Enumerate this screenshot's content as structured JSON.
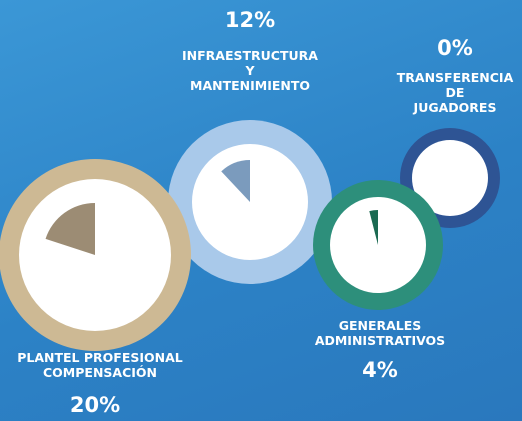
{
  "chart_data": {
    "type": "pie",
    "categories": [
      "PLANTEL PROFESIONAL\nCOMPENSACIÓN",
      "INFRAESTRUCTURA\nY\nMANTENIMIENTO",
      "TRANSFERENCIA\nDE\nJUGADORES",
      "GENERALES\nADMINISTRATIVOS"
    ],
    "values": [
      20,
      12,
      0,
      4
    ],
    "value_labels": [
      "20%",
      "12%",
      "0%",
      "4%"
    ],
    "colors": [
      "#cdb994",
      "#a9c9ea",
      "#2e5494",
      "#2d8f7b"
    ],
    "wedge_colors": [
      "#9c8c74",
      "#7b9bbd",
      "#1f3f7a",
      "#1b6a52"
    ]
  }
}
